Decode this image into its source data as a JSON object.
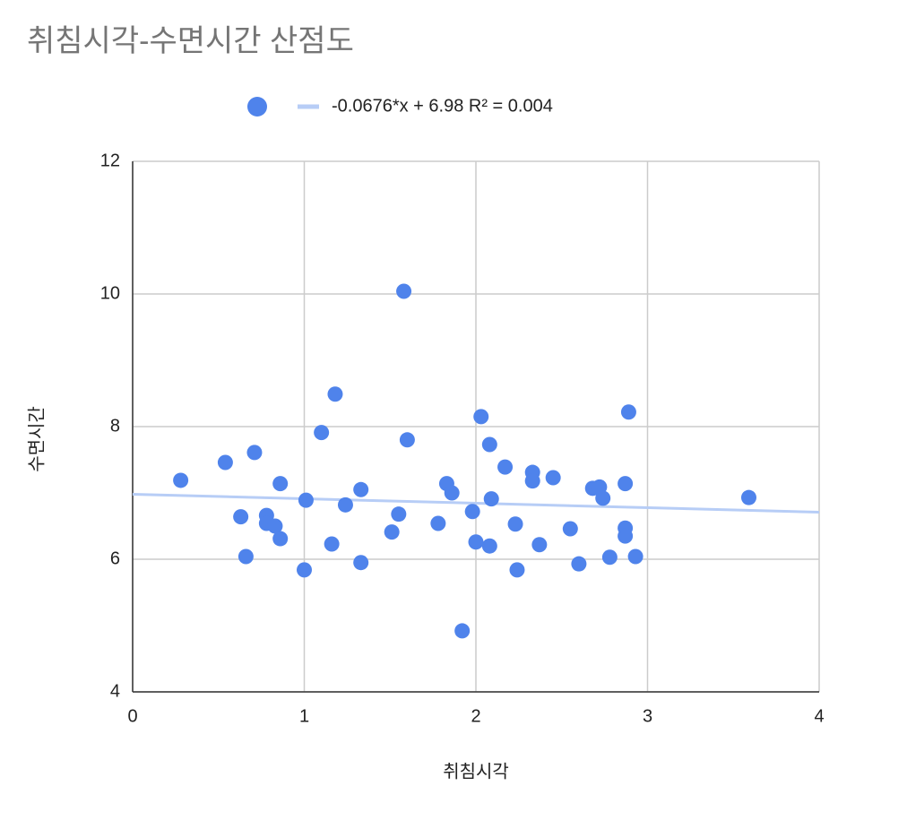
{
  "chart_data": {
    "type": "scatter",
    "title": "취침시각-수면시간 산점도",
    "x_label": "취침시각",
    "y_label": "수면시간",
    "xlim": [
      0,
      4
    ],
    "xticks": [
      0,
      1,
      2,
      3,
      4
    ],
    "ylim": [
      4,
      12
    ],
    "yticks": [
      4,
      6,
      8,
      10,
      12
    ],
    "grid": true,
    "series": [
      {
        "color": "#4f83eb",
        "x": [
          0.28,
          0.54,
          0.71,
          0.86,
          0.63,
          0.66,
          0.78,
          0.78,
          0.83,
          0.86,
          1.0,
          1.01,
          1.1,
          1.18,
          1.16,
          1.24,
          1.33,
          1.33,
          1.51,
          1.55,
          1.58,
          1.6,
          1.78,
          1.83,
          1.86,
          1.92,
          1.98,
          2.0,
          2.03,
          2.08,
          2.08,
          2.09,
          2.17,
          2.23,
          2.24,
          2.33,
          2.33,
          2.37,
          2.45,
          2.55,
          2.6,
          2.68,
          2.72,
          2.74,
          2.78,
          2.87,
          2.87,
          2.87,
          2.89,
          2.93,
          3.59
        ],
        "values": [
          7.19,
          7.46,
          7.61,
          7.14,
          6.64,
          6.04,
          6.66,
          6.54,
          6.5,
          6.31,
          5.84,
          6.89,
          7.91,
          8.49,
          6.23,
          6.82,
          7.05,
          5.95,
          6.41,
          6.68,
          10.04,
          7.8,
          6.54,
          7.14,
          7.0,
          4.92,
          6.72,
          6.26,
          8.15,
          7.73,
          6.2,
          6.91,
          7.39,
          6.53,
          5.84,
          7.31,
          7.18,
          6.22,
          7.23,
          6.46,
          5.93,
          7.07,
          7.09,
          6.92,
          6.03,
          7.14,
          6.47,
          6.35,
          8.22,
          6.04,
          6.93
        ]
      }
    ],
    "trendline": {
      "label": "-0.0676*x + 6.98 R² = 0.004",
      "slope": -0.0676,
      "intercept": 6.98,
      "color": "#b7cdf6"
    }
  }
}
